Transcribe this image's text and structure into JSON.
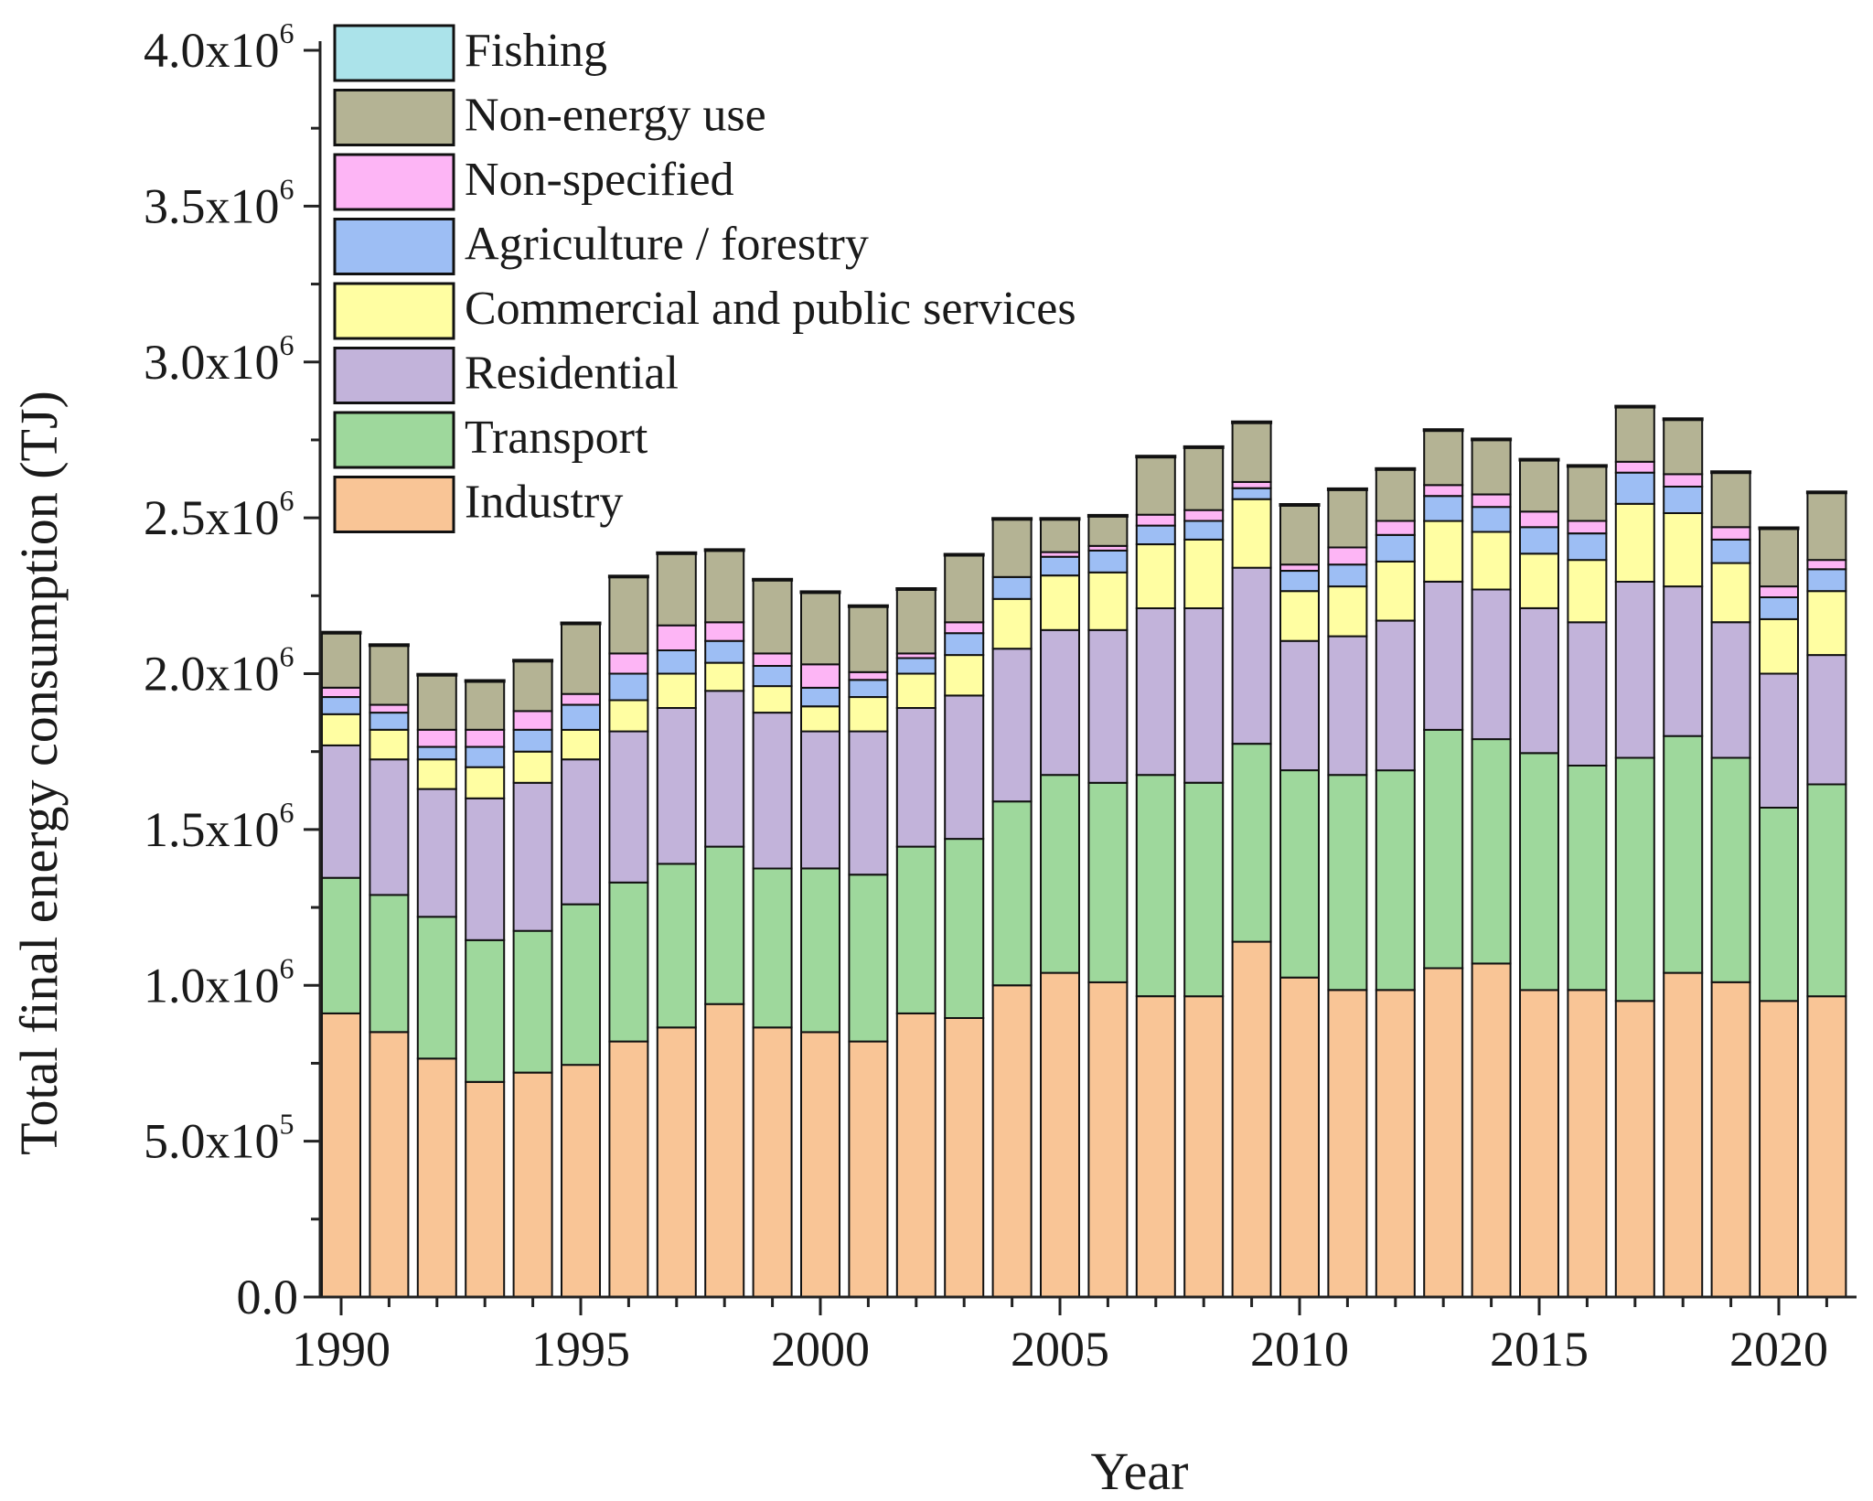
{
  "chart_data": {
    "type": "bar",
    "stacked": true,
    "xlabel": "Year",
    "ylabel": "Total final energy consumption (TJ)",
    "ylim": [
      0,
      4000000
    ],
    "legend_position": "top-left",
    "y_ticks": [
      {
        "value": 0,
        "mantissa": "0.0",
        "exp": ""
      },
      {
        "value": 500000,
        "mantissa": "5.0x10",
        "exp": "5"
      },
      {
        "value": 1000000,
        "mantissa": "1.0x10",
        "exp": "6"
      },
      {
        "value": 1500000,
        "mantissa": "1.5x10",
        "exp": "6"
      },
      {
        "value": 2000000,
        "mantissa": "2.0x10",
        "exp": "6"
      },
      {
        "value": 2500000,
        "mantissa": "2.5x10",
        "exp": "6"
      },
      {
        "value": 3000000,
        "mantissa": "3.0x10",
        "exp": "6"
      },
      {
        "value": 3500000,
        "mantissa": "3.5x10",
        "exp": "6"
      },
      {
        "value": 4000000,
        "mantissa": "4.0x10",
        "exp": "6"
      }
    ],
    "x_ticks": [
      "1990",
      "1995",
      "2000",
      "2005",
      "2010",
      "2015",
      "2020"
    ],
    "categories": [
      1990,
      1991,
      1992,
      1993,
      1994,
      1995,
      1996,
      1997,
      1998,
      1999,
      2000,
      2001,
      2002,
      2003,
      2004,
      2005,
      2006,
      2007,
      2008,
      2009,
      2010,
      2011,
      2012,
      2013,
      2014,
      2015,
      2016,
      2017,
      2018,
      2019,
      2020,
      2021
    ],
    "series": [
      {
        "name": "Industry",
        "color": "#F9C596",
        "values": [
          910000,
          850000,
          765000,
          690000,
          720000,
          745000,
          820000,
          865000,
          940000,
          865000,
          850000,
          820000,
          910000,
          895000,
          1000000,
          1040000,
          1010000,
          965000,
          965000,
          1140000,
          1025000,
          985000,
          985000,
          1055000,
          1070000,
          985000,
          985000,
          950000,
          1040000,
          1010000,
          950000,
          965000
        ]
      },
      {
        "name": "Transport",
        "color": "#9ED89C",
        "values": [
          435000,
          440000,
          455000,
          455000,
          455000,
          515000,
          510000,
          525000,
          505000,
          510000,
          525000,
          535000,
          535000,
          575000,
          590000,
          635000,
          640000,
          710000,
          685000,
          635000,
          665000,
          690000,
          705000,
          765000,
          720000,
          760000,
          720000,
          780000,
          760000,
          720000,
          620000,
          680000
        ]
      },
      {
        "name": "Residential",
        "color": "#C2B3DA",
        "values": [
          425000,
          435000,
          410000,
          455000,
          475000,
          465000,
          485000,
          500000,
          500000,
          500000,
          440000,
          460000,
          445000,
          460000,
          490000,
          465000,
          490000,
          535000,
          560000,
          565000,
          415000,
          445000,
          480000,
          475000,
          480000,
          465000,
          460000,
          565000,
          480000,
          435000,
          430000,
          415000
        ]
      },
      {
        "name": "Commercial and public services",
        "color": "#FFFEA2",
        "values": [
          100000,
          95000,
          95000,
          100000,
          100000,
          95000,
          100000,
          110000,
          90000,
          85000,
          80000,
          110000,
          110000,
          130000,
          160000,
          175000,
          185000,
          205000,
          220000,
          220000,
          160000,
          160000,
          190000,
          195000,
          185000,
          175000,
          200000,
          250000,
          235000,
          190000,
          175000,
          205000
        ]
      },
      {
        "name": "Agriculture / forestry",
        "color": "#9DBEF4",
        "values": [
          55000,
          55000,
          40000,
          65000,
          70000,
          80000,
          85000,
          75000,
          70000,
          65000,
          60000,
          55000,
          50000,
          70000,
          70000,
          60000,
          70000,
          60000,
          60000,
          35000,
          65000,
          70000,
          85000,
          80000,
          80000,
          85000,
          85000,
          100000,
          85000,
          75000,
          70000,
          70000
        ]
      },
      {
        "name": "Non-specified",
        "color": "#FDB5F5",
        "values": [
          30000,
          25000,
          55000,
          55000,
          60000,
          35000,
          65000,
          80000,
          60000,
          40000,
          75000,
          25000,
          15000,
          35000,
          0,
          15000,
          15000,
          35000,
          35000,
          20000,
          20000,
          55000,
          45000,
          35000,
          40000,
          50000,
          40000,
          35000,
          40000,
          40000,
          35000,
          30000
        ]
      },
      {
        "name": "Non-energy use",
        "color": "#B4B394",
        "values": [
          175000,
          190000,
          175000,
          155000,
          160000,
          225000,
          245000,
          230000,
          230000,
          235000,
          230000,
          210000,
          205000,
          215000,
          185000,
          105000,
          95000,
          185000,
          200000,
          190000,
          190000,
          185000,
          165000,
          175000,
          175000,
          165000,
          175000,
          175000,
          175000,
          175000,
          185000,
          215000
        ]
      },
      {
        "name": "Fishing",
        "color": "#ABE3EA",
        "values": [
          3000,
          3000,
          3000,
          3000,
          3000,
          3000,
          3000,
          3000,
          3000,
          3000,
          3000,
          3000,
          3000,
          3000,
          3000,
          3000,
          3000,
          3000,
          3000,
          3000,
          3000,
          3000,
          3000,
          3000,
          3000,
          3000,
          3000,
          3000,
          3000,
          3000,
          3000,
          3000
        ]
      }
    ]
  }
}
